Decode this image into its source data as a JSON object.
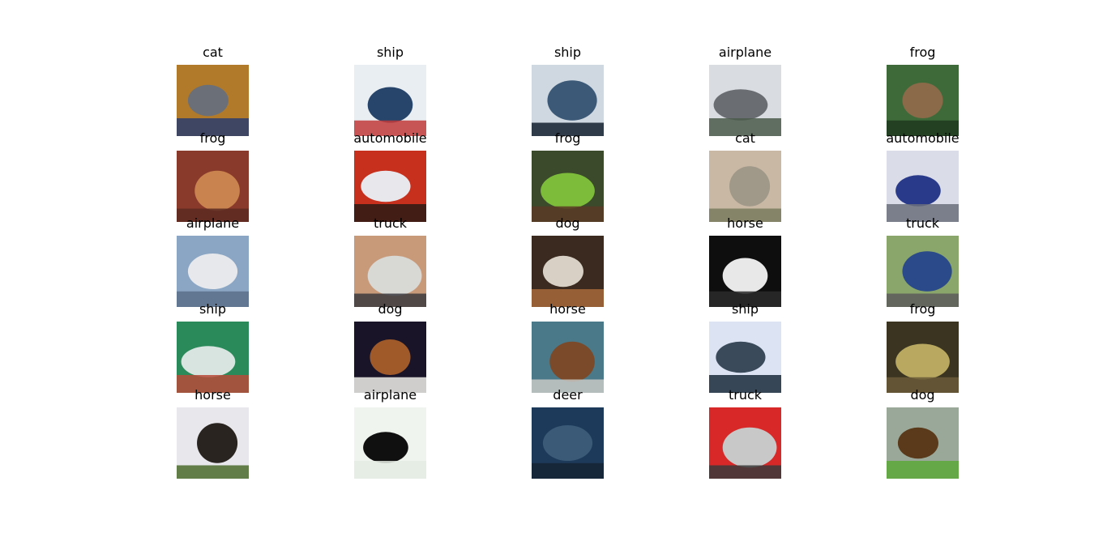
{
  "figure": {
    "images": [
      {
        "label": "cat",
        "palette": [
          "#b07a2a",
          "#6b6f78",
          "#2a3d6e"
        ]
      },
      {
        "label": "ship",
        "palette": [
          "#e8eef2",
          "#27456a",
          "#c23a3a"
        ]
      },
      {
        "label": "ship",
        "palette": [
          "#cfd8e0",
          "#3c5a78",
          "#14202e"
        ]
      },
      {
        "label": "airplane",
        "palette": [
          "#d9dde2",
          "#6a6e72",
          "#4a5a4a"
        ]
      },
      {
        "label": "frog",
        "palette": [
          "#3e6a3a",
          "#8a6a48",
          "#1e3a1e"
        ]
      },
      {
        "label": "frog",
        "palette": [
          "#8a3a2a",
          "#c9834e",
          "#5a2a22"
        ]
      },
      {
        "label": "automobile",
        "palette": [
          "#c8301e",
          "#e8e8ec",
          "#2a1a14"
        ]
      },
      {
        "label": "frog",
        "palette": [
          "#3a4a2a",
          "#7cbc3a",
          "#5a3a26"
        ]
      },
      {
        "label": "cat",
        "palette": [
          "#c8b8a4",
          "#a09888",
          "#7a7a5e"
        ]
      },
      {
        "label": "automobile",
        "palette": [
          "#dadce8",
          "#2a3a8a",
          "#6a6e7a"
        ]
      },
      {
        "label": "airplane",
        "palette": [
          "#8aa6c4",
          "#e6e8ec",
          "#5a6e88"
        ]
      },
      {
        "label": "truck",
        "palette": [
          "#c89a7a",
          "#d8d8d4",
          "#3a3a3e"
        ]
      },
      {
        "label": "dog",
        "palette": [
          "#3a2a20",
          "#d8d0c4",
          "#a8683a"
        ]
      },
      {
        "label": "horse",
        "palette": [
          "#0e0e0e",
          "#e8e8e8",
          "#2a2a2a"
        ]
      },
      {
        "label": "truck",
        "palette": [
          "#8aa66a",
          "#2a4a8a",
          "#5a5a5a"
        ]
      },
      {
        "label": "ship",
        "palette": [
          "#2a8a5a",
          "#d8e4e0",
          "#b84a3a"
        ]
      },
      {
        "label": "dog",
        "palette": [
          "#1a1428",
          "#a05a2a",
          "#f0eeea"
        ]
      },
      {
        "label": "horse",
        "palette": [
          "#4a7a8a",
          "#7a4a2a",
          "#c8c8c4"
        ]
      },
      {
        "label": "ship",
        "palette": [
          "#dce4f4",
          "#3a4a5a",
          "#1a2a3a"
        ]
      },
      {
        "label": "frog",
        "palette": [
          "#3a3420",
          "#b8a860",
          "#6a5a38"
        ]
      },
      {
        "label": "horse",
        "palette": [
          "#e8e8ec",
          "#2a2420",
          "#4a6a2a"
        ]
      },
      {
        "label": "airplane",
        "palette": [
          "#f0f4ee",
          "#101010",
          "#e4ebe2"
        ]
      },
      {
        "label": "deer",
        "palette": [
          "#1e3a5a",
          "#3a5a78",
          "#142434"
        ]
      },
      {
        "label": "truck",
        "palette": [
          "#d82828",
          "#c8c8c8",
          "#3a3a3a"
        ]
      },
      {
        "label": "dog",
        "palette": [
          "#9aa89a",
          "#5a3a1a",
          "#5aa83a"
        ]
      }
    ]
  }
}
